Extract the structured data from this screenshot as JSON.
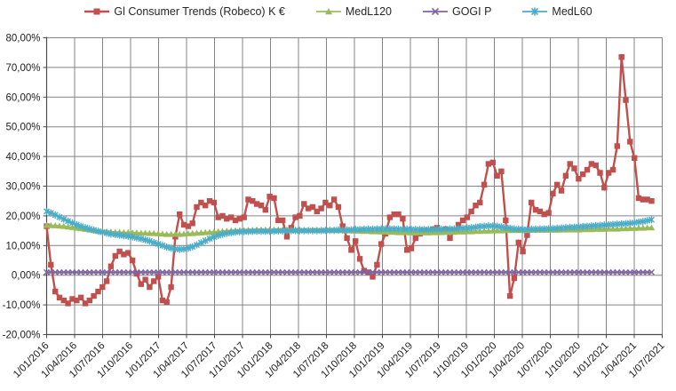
{
  "chart_data": {
    "type": "line",
    "title": "",
    "legend_position": "top",
    "grid": "both",
    "background": "#FFFFFF",
    "colors": {
      "grid": "#848484",
      "axis": "#4D4D4D",
      "text": "#1F1F1F"
    },
    "y_axis": {
      "min": -20,
      "max": 80,
      "step": 10,
      "tick_labels": [
        "80,00%",
        "70,00%",
        "60,00%",
        "50,00%",
        "40,00%",
        "30,00%",
        "20,00%",
        "10,00%",
        "0,00%",
        "-10,00%",
        "-20,00%"
      ],
      "format": "percent-comma-decimal"
    },
    "x_axis": {
      "tick_labels": [
        "1/01/2016",
        "1/04/2016",
        "1/07/2016",
        "1/10/2016",
        "1/01/2017",
        "1/04/2017",
        "1/07/2017",
        "1/10/2017",
        "1/01/2018",
        "1/04/2018",
        "1/07/2018",
        "1/10/2018",
        "1/01/2019",
        "1/04/2019",
        "1/07/2019",
        "1/10/2019",
        "1/01/2020",
        "1/04/2020",
        "1/07/2020",
        "1/10/2020",
        "1/01/2021",
        "1/04/2021",
        "1/07/2021"
      ],
      "interval": "quarterly",
      "label_rotation_deg": -45
    },
    "sampling": {
      "start_year": 2016.0,
      "step_days": 14,
      "points": 142
    },
    "series": [
      {
        "name": "Gl Consumer Trends (Robeco) K €",
        "color": "#C0504D",
        "marker": "square",
        "values": [
          16.5,
          3.5,
          -5.5,
          -7.5,
          -8.5,
          -9.5,
          -8,
          -8.5,
          -7.5,
          -9.5,
          -8.5,
          -7,
          -5.5,
          -4,
          -2,
          3,
          6.5,
          8,
          7,
          7.5,
          5,
          0.5,
          -3,
          -1.5,
          -4,
          -2,
          -0.5,
          -8.5,
          -9,
          -4,
          13,
          20.5,
          17,
          16.5,
          17.5,
          23,
          24.5,
          23.5,
          25,
          24.5,
          19.5,
          20,
          19,
          19.5,
          18.5,
          19,
          19.5,
          25.5,
          25,
          24,
          23.5,
          22,
          26.5,
          26,
          18.5,
          18.5,
          13,
          16,
          19.5,
          20,
          24,
          22.5,
          23,
          21.5,
          22.5,
          24.5,
          23.5,
          25.5,
          23,
          16.5,
          12.5,
          8.5,
          11.5,
          5.5,
          1.5,
          1,
          -0.5,
          3.5,
          10.5,
          14,
          19.5,
          20.5,
          20.5,
          19,
          8.5,
          9,
          12.5,
          14,
          15,
          14.5,
          15.5,
          16,
          14.5,
          15.5,
          12.5,
          15,
          17,
          18.5,
          19.5,
          21.5,
          23.5,
          24.5,
          30.5,
          37.5,
          38,
          33.5,
          35,
          18.5,
          -7,
          -1,
          11,
          8,
          13.5,
          24.5,
          22,
          21.5,
          20.5,
          21,
          27.5,
          30.5,
          28.5,
          33.5,
          37.5,
          36,
          32.5,
          34,
          35.5,
          37.5,
          37,
          34.5,
          29.5,
          34.5,
          35.5,
          43.5,
          73.5,
          59,
          45,
          39.5,
          26,
          25.5,
          25.5,
          25
        ]
      },
      {
        "name": "MedL120",
        "color": "#9BBB59",
        "marker": "triangle",
        "values": [
          16.8,
          16.8,
          16.7,
          16.6,
          16.5,
          16.3,
          16.1,
          15.9,
          15.7,
          15.5,
          15.3,
          15.1,
          14.9,
          14.8,
          14.7,
          14.6,
          14.5,
          14.5,
          14.4,
          14.4,
          14.3,
          14.3,
          14.2,
          14.2,
          14.1,
          14.1,
          14,
          13.9,
          13.8,
          13.8,
          13.8,
          13.8,
          13.9,
          14,
          14.1,
          14.2,
          14.3,
          14.4,
          14.5,
          14.6,
          14.7,
          14.8,
          14.9,
          15,
          15,
          15.1,
          15.1,
          15.2,
          15.2,
          15.3,
          15.3,
          15.3,
          15.3,
          15.3,
          15.3,
          15.3,
          15.3,
          15.3,
          15.3,
          15.3,
          15.2,
          15.2,
          15.2,
          15.2,
          15.2,
          15.2,
          15.2,
          15.2,
          15.1,
          15.1,
          15,
          15,
          14.9,
          14.9,
          14.8,
          14.8,
          14.7,
          14.7,
          14.6,
          14.6,
          14.5,
          14.5,
          14.4,
          14.4,
          14.4,
          14.3,
          14.3,
          14.3,
          14.3,
          14.3,
          14.4,
          14.4,
          14.4,
          14.5,
          14.5,
          14.5,
          14.6,
          14.6,
          14.7,
          14.7,
          14.8,
          14.8,
          14.9,
          14.9,
          15,
          15,
          15,
          15.1,
          15.1,
          15.1,
          15.1,
          15.1,
          15.1,
          15.2,
          15.2,
          15.2,
          15.2,
          15.2,
          15.2,
          15.2,
          15.3,
          15.3,
          15.3,
          15.3,
          15.3,
          15.4,
          15.4,
          15.4,
          15.5,
          15.5,
          15.5,
          15.6,
          15.6,
          15.6,
          15.7,
          15.7,
          15.8,
          15.8,
          15.9,
          15.9,
          16,
          16
        ]
      },
      {
        "name": "GOGI P",
        "color": "#8064A2",
        "marker": "x",
        "constant": 1.0
      },
      {
        "name": "MedL60",
        "color": "#4BACC6",
        "marker": "asterisk",
        "values": [
          21.5,
          21,
          20.3,
          19.6,
          18.9,
          18.2,
          17.6,
          17,
          16.5,
          16,
          15.6,
          15.2,
          14.8,
          14.5,
          14.2,
          13.9,
          13.7,
          13.5,
          13.3,
          13.1,
          12.9,
          12.6,
          12.3,
          11.9,
          11.5,
          11,
          10.5,
          10,
          9.5,
          9.1,
          8.8,
          8.7,
          8.8,
          9.1,
          9.6,
          10.2,
          10.9,
          11.6,
          12.3,
          12.9,
          13.4,
          13.8,
          14.1,
          14.3,
          14.5,
          14.6,
          14.7,
          14.7,
          14.8,
          14.8,
          14.8,
          14.8,
          14.8,
          14.8,
          14.9,
          14.9,
          14.9,
          15,
          15,
          15,
          15,
          15,
          15,
          15,
          15,
          15.1,
          15.1,
          15.1,
          15.2,
          15.2,
          15.3,
          15.3,
          15.4,
          15.4,
          15.5,
          15.5,
          15.5,
          15.6,
          15.6,
          15.6,
          15.6,
          15.6,
          15.5,
          15.5,
          15.5,
          15.4,
          15.4,
          15.4,
          15.4,
          15.4,
          15.4,
          15.5,
          15.5,
          15.5,
          15.6,
          15.6,
          15.7,
          15.8,
          15.9,
          16,
          16.2,
          16.4,
          16.5,
          16.6,
          16.6,
          16.5,
          16.3,
          16,
          15.8,
          15.6,
          15.5,
          15.4,
          15.4,
          15.5,
          15.5,
          15.6,
          15.6,
          15.7,
          15.7,
          15.8,
          15.9,
          16,
          16.1,
          16.2,
          16.3,
          16.4,
          16.5,
          16.6,
          16.7,
          16.8,
          16.9,
          17,
          17.1,
          17.2,
          17.3,
          17.4,
          17.5,
          17.7,
          17.9,
          18.1,
          18.4,
          18.7
        ]
      }
    ]
  }
}
